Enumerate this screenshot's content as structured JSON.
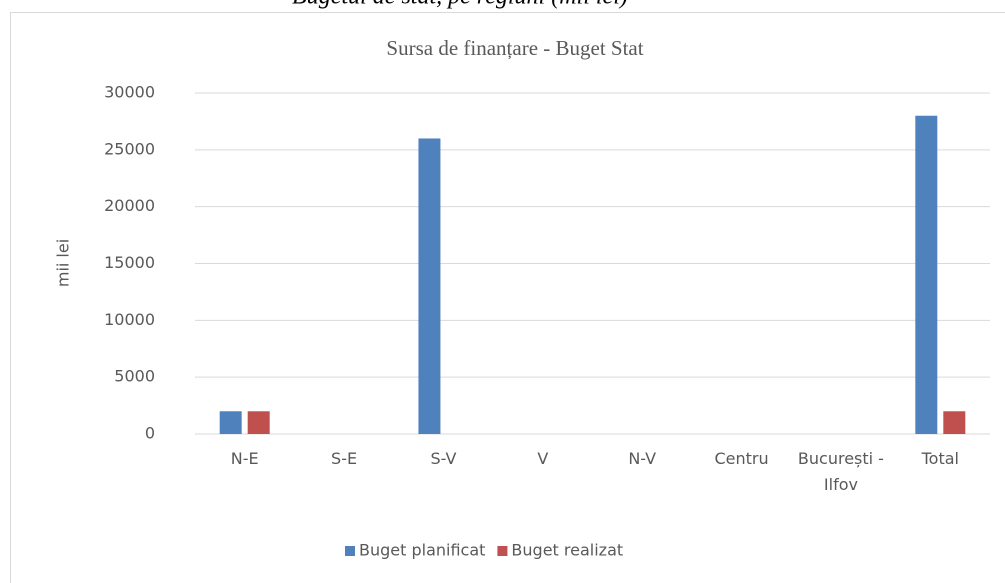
{
  "caption": "Bugetul de stat, pe regiuni  (mii lei)",
  "chart_data": {
    "type": "bar",
    "title": "Sursa de finanțare - Buget Stat",
    "y_label": "mii lei",
    "categories": [
      "N-E",
      "S-E",
      "S-V",
      "V",
      "N-V",
      "Centru",
      "București - Ilfov",
      "Total"
    ],
    "series": [
      {
        "name": "Buget planificat",
        "color": "#4f81bd",
        "values": [
          2000,
          0,
          26000,
          0,
          0,
          0,
          0,
          28000
        ]
      },
      {
        "name": "Buget realizat",
        "color": "#c0504d",
        "values": [
          2000,
          0,
          0,
          0,
          0,
          0,
          0,
          2000
        ]
      }
    ],
    "ylim": [
      0,
      30000
    ],
    "yticks": [
      0,
      5000,
      10000,
      15000,
      20000,
      25000,
      30000
    ],
    "grid": true,
    "legend": "bottom"
  }
}
